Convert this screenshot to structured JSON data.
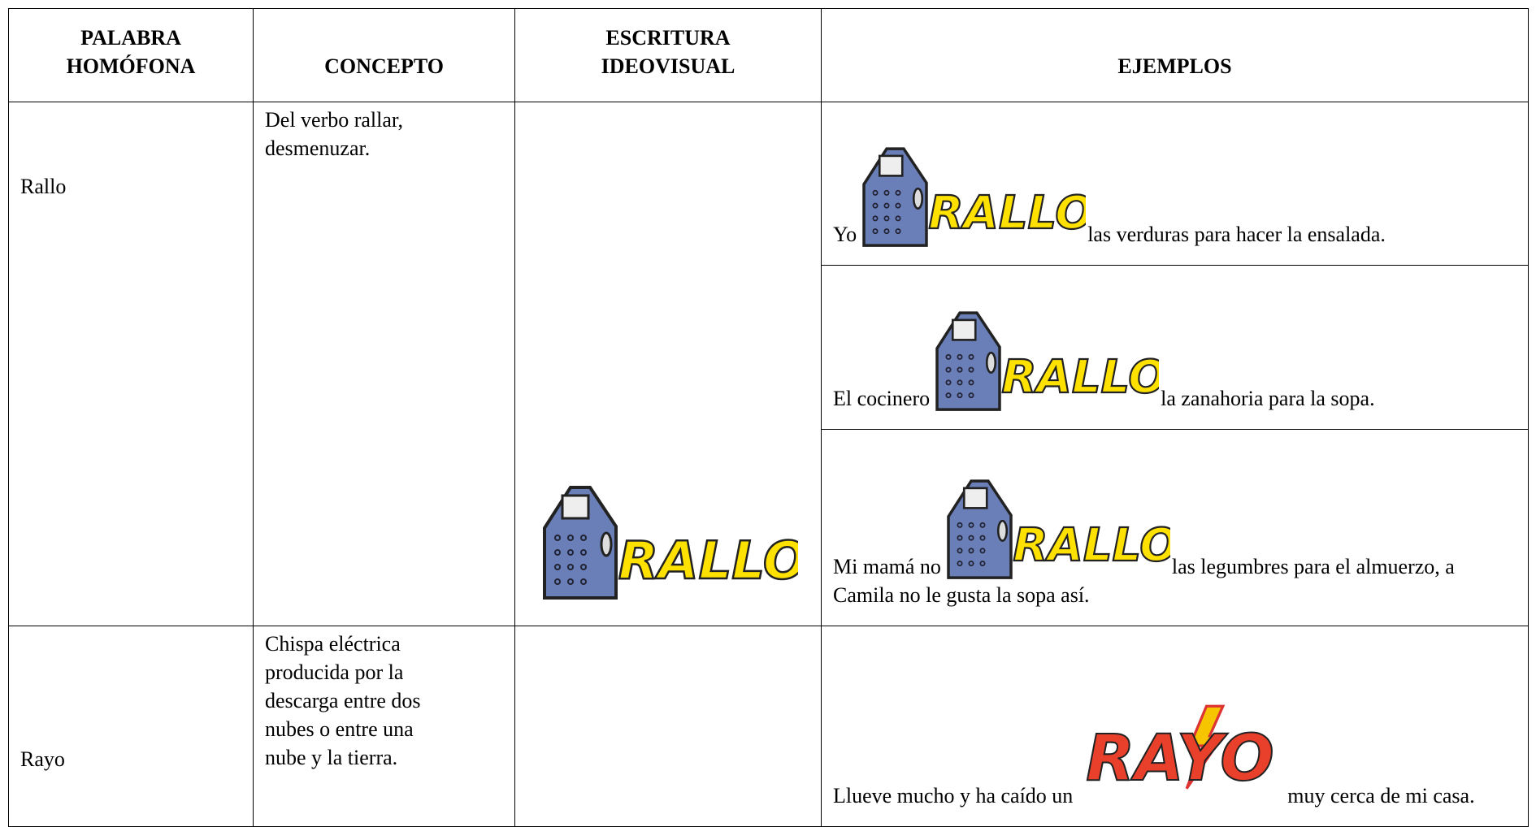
{
  "table": {
    "header": [
      [
        "PALABRA",
        "HOMÓFONA"
      ],
      [
        "CONCEPTO"
      ],
      [
        "ESCRITURA",
        "IDEOVISUAL"
      ],
      [
        "EJEMPLOS"
      ]
    ],
    "rows": [
      {
        "word": "Rallo",
        "concept": "Del verbo rallar, desmenuzar.",
        "ideovisual": "RALLO",
        "examples": [
          {
            "before": "Yo",
            "image": "RALLO",
            "after": "las verduras para hacer la ensalada."
          },
          {
            "before": "El cocinero",
            "image": "RALLO",
            "after": "la zanahoria para la sopa."
          },
          {
            "before": "Mi mamá no",
            "image": "RALLO",
            "after": "las legumbres para el almuerzo, a Camila no le gusta la sopa así."
          }
        ]
      },
      {
        "word": "Rayo",
        "concept": "Chispa eléctrica producida por la descarga entre dos nubes o entre una nube y la tierra.",
        "examples": [
          {
            "before": "Llueve mucho y ha caído un",
            "image": "RAYO",
            "after": "muy cerca de mi casa."
          }
        ]
      }
    ]
  }
}
